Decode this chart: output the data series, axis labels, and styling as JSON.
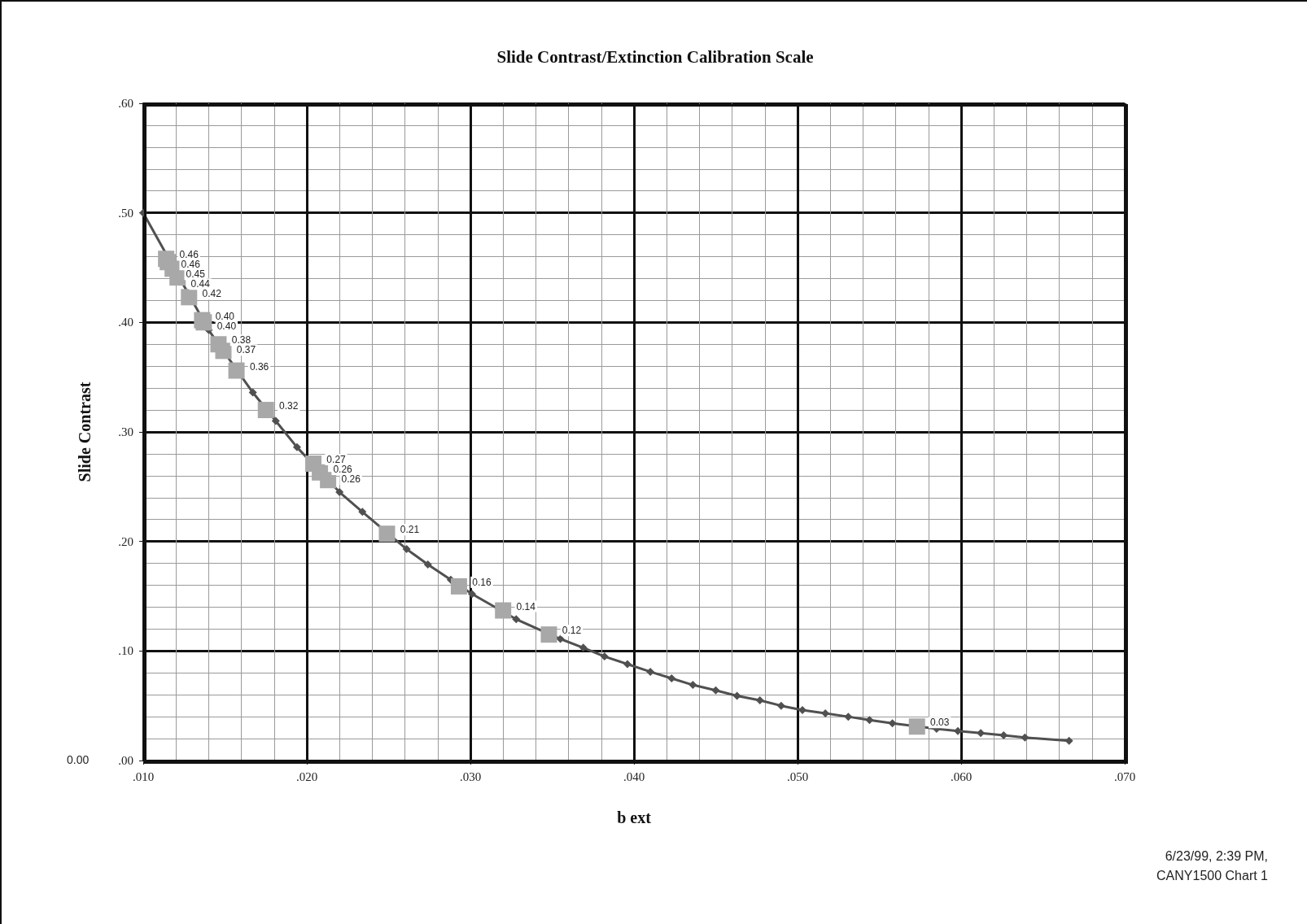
{
  "chart_data": {
    "type": "line",
    "title": "Slide Contrast/Extinction Calibration Scale",
    "xlabel": "b ext",
    "ylabel": "Slide Contrast",
    "xlim": [
      0.01,
      0.07
    ],
    "ylim": [
      0,
      0.6
    ],
    "xticks": [
      {
        "value": 0.01,
        "label": ".010"
      },
      {
        "value": 0.02,
        "label": ".020"
      },
      {
        "value": 0.03,
        "label": ".030"
      },
      {
        "value": 0.04,
        "label": ".040"
      },
      {
        "value": 0.05,
        "label": ".050"
      },
      {
        "value": 0.06,
        "label": ".060"
      },
      {
        "value": 0.07,
        "label": ".070"
      }
    ],
    "yticks": [
      {
        "value": 0,
        "label": ".00"
      },
      {
        "value": 0.1,
        "label": ".10"
      },
      {
        "value": 0.2,
        "label": ".20"
      },
      {
        "value": 0.3,
        "label": ".30"
      },
      {
        "value": 0.4,
        "label": ".40"
      },
      {
        "value": 0.5,
        "label": ".50"
      },
      {
        "value": 0.6,
        "label": ".60"
      }
    ],
    "grid": true,
    "series": [
      {
        "color": "#505050",
        "marker": "diamond",
        "line_style": "solid",
        "x": [
          0.01,
          0.014,
          0.0167,
          0.0181,
          0.0194,
          0.022,
          0.0234,
          0.0261,
          0.0274,
          0.0288,
          0.0301,
          0.0328,
          0.0355,
          0.0369,
          0.0382,
          0.0396,
          0.041,
          0.0423,
          0.0436,
          0.045,
          0.0463,
          0.0477,
          0.049,
          0.0503,
          0.0517,
          0.0531,
          0.0544,
          0.0558,
          0.0585,
          0.0598,
          0.0612,
          0.0626,
          0.0639,
          0.0666
        ],
        "values": [
          0.5,
          0.393,
          0.336,
          0.31,
          0.286,
          0.245,
          0.227,
          0.193,
          0.179,
          0.165,
          0.152,
          0.129,
          0.111,
          0.103,
          0.095,
          0.088,
          0.081,
          0.075,
          0.069,
          0.064,
          0.059,
          0.055,
          0.05,
          0.046,
          0.043,
          0.04,
          0.037,
          0.034,
          0.029,
          0.027,
          0.025,
          0.023,
          0.021,
          0.018
        ]
      },
      {
        "type": "scatter",
        "color": "#a8a8a8",
        "marker": "square",
        "x": [
          0.0114,
          0.0115,
          0.0118,
          0.0121,
          0.0128,
          0.0136,
          0.0137,
          0.0146,
          0.0149,
          0.0157,
          0.0175,
          0.0204,
          0.0208,
          0.0213,
          0.0249,
          0.0293,
          0.032,
          0.0348,
          0.0573
        ],
        "values": [
          0.458,
          0.455,
          0.449,
          0.441,
          0.423,
          0.402,
          0.4,
          0.38,
          0.374,
          0.356,
          0.32,
          0.271,
          0.263,
          0.256,
          0.207,
          0.159,
          0.137,
          0.115,
          0.031
        ],
        "value_labels": [
          "0.46",
          "0.46",
          "0.45",
          "0.44",
          "0.42",
          "0.40",
          "0.40",
          "0.38",
          "0.37",
          "0.36",
          "0.32",
          "0.27",
          "0.26",
          "0.26",
          "0.21",
          "0.16",
          "0.14",
          "0.12",
          "0.03"
        ]
      }
    ],
    "annotations": [
      "0.00",
      "6/23/99, 2:39 PM,",
      "CANY1500 Chart 1"
    ]
  }
}
